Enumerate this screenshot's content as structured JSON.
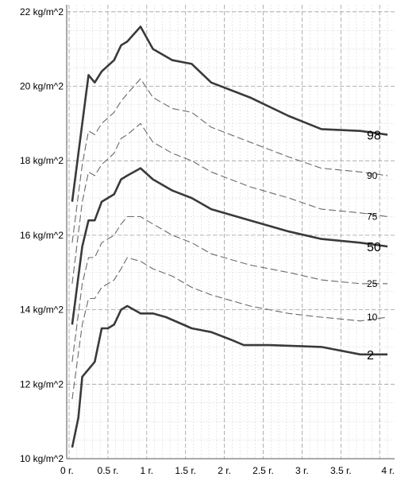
{
  "chart_data": {
    "type": "line",
    "title": "",
    "xlabel": "",
    "ylabel": "",
    "xlim": [
      0,
      4.1
    ],
    "ylim": [
      10,
      22
    ],
    "x_ticks": [
      {
        "value": 0,
        "label": "0 r."
      },
      {
        "value": 0.5,
        "label": "0.5 r."
      },
      {
        "value": 1,
        "label": "1 r."
      },
      {
        "value": 1.5,
        "label": "1.5 r."
      },
      {
        "value": 2,
        "label": "2 r."
      },
      {
        "value": 2.5,
        "label": "2.5 r."
      },
      {
        "value": 3,
        "label": "3 r."
      },
      {
        "value": 3.5,
        "label": "3.5 r."
      },
      {
        "value": 4,
        "label": "4 r."
      }
    ],
    "y_ticks": [
      {
        "value": 10,
        "label": "10 kg/m^2"
      },
      {
        "value": 12,
        "label": "12 kg/m^2"
      },
      {
        "value": 14,
        "label": "14 kg/m^2"
      },
      {
        "value": 16,
        "label": "16 kg/m^2"
      },
      {
        "value": 18,
        "label": "18 kg/m^2"
      },
      {
        "value": 20,
        "label": "20 kg/m^2"
      },
      {
        "value": 22,
        "label": "22 kg/m^2"
      }
    ],
    "grid": true,
    "series": [
      {
        "name": "98",
        "style": "major",
        "points": [
          [
            0.04,
            16.9
          ],
          [
            0.17,
            19.0
          ],
          [
            0.25,
            20.3
          ],
          [
            0.33,
            20.1
          ],
          [
            0.42,
            20.4
          ],
          [
            0.58,
            20.7
          ],
          [
            0.67,
            21.1
          ],
          [
            0.75,
            21.2
          ],
          [
            0.92,
            21.6
          ],
          [
            1.08,
            21.0
          ],
          [
            1.33,
            20.7
          ],
          [
            1.58,
            20.6
          ],
          [
            1.83,
            20.1
          ],
          [
            2.33,
            19.7
          ],
          [
            2.83,
            19.2
          ],
          [
            3.25,
            18.85
          ],
          [
            3.75,
            18.8
          ],
          [
            4.1,
            18.7
          ]
        ]
      },
      {
        "name": "90",
        "style": "minor",
        "points": [
          [
            0.04,
            15.8
          ],
          [
            0.17,
            17.9
          ],
          [
            0.25,
            18.8
          ],
          [
            0.33,
            18.7
          ],
          [
            0.42,
            19.0
          ],
          [
            0.58,
            19.3
          ],
          [
            0.67,
            19.6
          ],
          [
            0.75,
            19.8
          ],
          [
            0.92,
            20.2
          ],
          [
            1.08,
            19.7
          ],
          [
            1.33,
            19.4
          ],
          [
            1.58,
            19.3
          ],
          [
            1.83,
            18.9
          ],
          [
            2.33,
            18.5
          ],
          [
            2.83,
            18.1
          ],
          [
            3.25,
            17.8
          ],
          [
            3.75,
            17.7
          ],
          [
            4.1,
            17.6
          ]
        ]
      },
      {
        "name": "75",
        "style": "minor",
        "points": [
          [
            0.04,
            14.7
          ],
          [
            0.17,
            16.9
          ],
          [
            0.25,
            17.7
          ],
          [
            0.33,
            17.6
          ],
          [
            0.42,
            17.9
          ],
          [
            0.58,
            18.2
          ],
          [
            0.67,
            18.6
          ],
          [
            0.75,
            18.7
          ],
          [
            0.92,
            19.0
          ],
          [
            1.08,
            18.5
          ],
          [
            1.33,
            18.2
          ],
          [
            1.58,
            18.0
          ],
          [
            1.83,
            17.7
          ],
          [
            2.33,
            17.3
          ],
          [
            2.83,
            17.0
          ],
          [
            3.25,
            16.7
          ],
          [
            3.75,
            16.6
          ],
          [
            4.1,
            16.5
          ]
        ]
      },
      {
        "name": "50",
        "style": "major",
        "points": [
          [
            0.04,
            13.6
          ],
          [
            0.17,
            15.7
          ],
          [
            0.25,
            16.4
          ],
          [
            0.33,
            16.4
          ],
          [
            0.42,
            16.9
          ],
          [
            0.58,
            17.1
          ],
          [
            0.67,
            17.5
          ],
          [
            0.75,
            17.6
          ],
          [
            0.92,
            17.8
          ],
          [
            1.08,
            17.5
          ],
          [
            1.33,
            17.2
          ],
          [
            1.58,
            17.0
          ],
          [
            1.83,
            16.7
          ],
          [
            2.33,
            16.4
          ],
          [
            2.83,
            16.1
          ],
          [
            3.25,
            15.9
          ],
          [
            3.75,
            15.8
          ],
          [
            4.1,
            15.7
          ]
        ]
      },
      {
        "name": "25",
        "style": "minor",
        "points": [
          [
            0.04,
            12.6
          ],
          [
            0.17,
            14.7
          ],
          [
            0.25,
            15.4
          ],
          [
            0.33,
            15.4
          ],
          [
            0.42,
            15.8
          ],
          [
            0.58,
            16.0
          ],
          [
            0.67,
            16.3
          ],
          [
            0.75,
            16.5
          ],
          [
            0.92,
            16.5
          ],
          [
            1.08,
            16.3
          ],
          [
            1.33,
            16.0
          ],
          [
            1.58,
            15.8
          ],
          [
            1.83,
            15.5
          ],
          [
            2.33,
            15.2
          ],
          [
            2.83,
            15.0
          ],
          [
            3.25,
            14.8
          ],
          [
            3.75,
            14.7
          ],
          [
            4.1,
            14.7
          ]
        ]
      },
      {
        "name": "10",
        "style": "minor",
        "points": [
          [
            0.04,
            11.6
          ],
          [
            0.17,
            13.6
          ],
          [
            0.25,
            14.3
          ],
          [
            0.33,
            14.3
          ],
          [
            0.42,
            14.6
          ],
          [
            0.58,
            14.8
          ],
          [
            0.67,
            15.1
          ],
          [
            0.75,
            15.4
          ],
          [
            0.92,
            15.3
          ],
          [
            1.08,
            15.1
          ],
          [
            1.33,
            14.9
          ],
          [
            1.58,
            14.6
          ],
          [
            1.83,
            14.4
          ],
          [
            2.33,
            14.1
          ],
          [
            2.83,
            13.9
          ],
          [
            3.25,
            13.8
          ],
          [
            3.75,
            13.7
          ],
          [
            4.1,
            13.8
          ]
        ]
      },
      {
        "name": "2",
        "style": "major",
        "points": [
          [
            0.04,
            10.3
          ],
          [
            0.12,
            11.1
          ],
          [
            0.17,
            12.2
          ],
          [
            0.33,
            12.6
          ],
          [
            0.42,
            13.5
          ],
          [
            0.5,
            13.5
          ],
          [
            0.58,
            13.6
          ],
          [
            0.67,
            14.0
          ],
          [
            0.75,
            14.1
          ],
          [
            0.92,
            13.9
          ],
          [
            1.08,
            13.9
          ],
          [
            1.25,
            13.8
          ],
          [
            1.58,
            13.5
          ],
          [
            1.83,
            13.4
          ],
          [
            2.08,
            13.2
          ],
          [
            2.25,
            13.05
          ],
          [
            2.58,
            13.05
          ],
          [
            3.25,
            13.0
          ],
          [
            3.75,
            12.8
          ],
          [
            4.1,
            12.8
          ]
        ]
      }
    ]
  }
}
